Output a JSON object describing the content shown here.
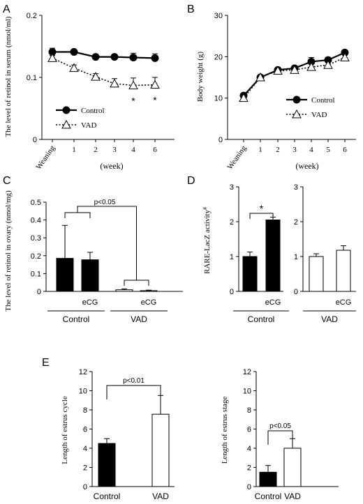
{
  "panel_letters": [
    "A",
    "B",
    "C",
    "D",
    "E"
  ],
  "chart_data": [
    {
      "id": "A",
      "type": "line",
      "ylabel": "The level of retinol in serum (nmol/ml)",
      "xlabel": "(week)",
      "x_ticks": [
        "Weaning",
        "1",
        "2",
        "3",
        "4",
        "6"
      ],
      "ylim": [
        0,
        0.2
      ],
      "y_ticks": [
        "0",
        "0.1",
        "0.2"
      ],
      "series": [
        {
          "name": "Control",
          "marker": "filled-circle",
          "line": "solid",
          "values": [
            0.141,
            0.141,
            0.133,
            0.133,
            0.132,
            0.131
          ],
          "errors": [
            0.006,
            0.004,
            0.004,
            0.004,
            0.007,
            0.007
          ]
        },
        {
          "name": "VAD",
          "marker": "open-triangle",
          "line": "dotted",
          "values": [
            0.131,
            0.115,
            0.101,
            0.09,
            0.087,
            0.088
          ],
          "errors": [
            0.004,
            0.005,
            0.005,
            0.008,
            0.012,
            0.012
          ]
        }
      ],
      "annotations": [
        {
          "x": "4",
          "text": "*"
        },
        {
          "x": "6",
          "text": "*"
        }
      ],
      "legend": "bottom-left"
    },
    {
      "id": "B",
      "type": "line",
      "ylabel": "Body weight (g)",
      "xlabel": "(week)",
      "x_ticks": [
        "Weaning",
        "1",
        "2",
        "3",
        "4",
        "5",
        "6"
      ],
      "ylim": [
        0,
        30
      ],
      "y_ticks": [
        "0",
        "10",
        "20",
        "30"
      ],
      "series": [
        {
          "name": "Control",
          "marker": "filled-circle",
          "line": "solid",
          "values": [
            10.6,
            15.0,
            16.8,
            17.2,
            18.8,
            19.2,
            21.0
          ],
          "errors": [
            0.6,
            0.6,
            0.5,
            0.5,
            1.0,
            0.6,
            0.6
          ]
        },
        {
          "name": "VAD",
          "marker": "open-triangle",
          "line": "dotted",
          "values": [
            10.0,
            15.0,
            16.6,
            16.8,
            17.5,
            18.0,
            19.8
          ],
          "errors": [
            0.6,
            0.6,
            0.5,
            0.6,
            0.8,
            0.6,
            0.6
          ]
        }
      ],
      "legend": "bottom-right"
    },
    {
      "id": "C",
      "type": "bar",
      "ylabel": "The level of retinol in ovary (nmol/mg)",
      "ylim": [
        0,
        0.5
      ],
      "y_ticks": [
        "0",
        "0.1",
        "0.2",
        "0.3",
        "0.4",
        "0.5"
      ],
      "categories": [
        "",
        "eCG",
        "",
        "eCG"
      ],
      "groups": [
        "Control",
        "VAD"
      ],
      "values": [
        0.185,
        0.177,
        0.009,
        0.004
      ],
      "errors": [
        0.185,
        0.042,
        0.005,
        0.003
      ],
      "fills": [
        "black",
        "black",
        "white",
        "white"
      ],
      "annotation": "p<0.05"
    },
    {
      "id": "D-control",
      "type": "bar",
      "ylabel": "RARE-LacZ activity",
      "ylabel_mark": "#",
      "ylim": [
        0,
        3
      ],
      "y_ticks": [
        "0",
        "1",
        "2",
        "3"
      ],
      "categories": [
        "",
        "eCG"
      ],
      "group": "Control",
      "values": [
        1.0,
        2.05
      ],
      "errors": [
        0.13,
        0.08
      ],
      "fills": [
        "black",
        "black"
      ],
      "annotation": "*"
    },
    {
      "id": "D-vad",
      "type": "bar",
      "ylim": [
        0,
        3
      ],
      "y_ticks": [
        "0",
        "1",
        "2",
        "3"
      ],
      "categories": [
        "",
        "eCG"
      ],
      "group": "VAD",
      "values": [
        1.0,
        1.18
      ],
      "errors": [
        0.08,
        0.13
      ],
      "fills": [
        "white",
        "white"
      ]
    },
    {
      "id": "E-cycle",
      "type": "bar",
      "ylabel": "Length of estrus cycle",
      "ylim": [
        0,
        12
      ],
      "y_ticks": [
        "0",
        "2",
        "4",
        "6",
        "8",
        "10",
        "12"
      ],
      "categories": [
        "Control",
        "VAD"
      ],
      "values": [
        4.5,
        7.55
      ],
      "errors": [
        0.5,
        1.95
      ],
      "fills": [
        "black",
        "white"
      ],
      "annotation": "p<0.01"
    },
    {
      "id": "E-stage",
      "type": "bar",
      "ylabel": "Length of estrus stage",
      "ylim": [
        0,
        12
      ],
      "y_ticks": [
        "0",
        "2",
        "4",
        "6",
        "8",
        "10",
        "12"
      ],
      "categories": [
        "Control",
        "VAD"
      ],
      "values": [
        1.5,
        4.0
      ],
      "errors": [
        0.7,
        1.0
      ],
      "fills": [
        "black",
        "white"
      ],
      "annotation": "p<0.05"
    }
  ]
}
